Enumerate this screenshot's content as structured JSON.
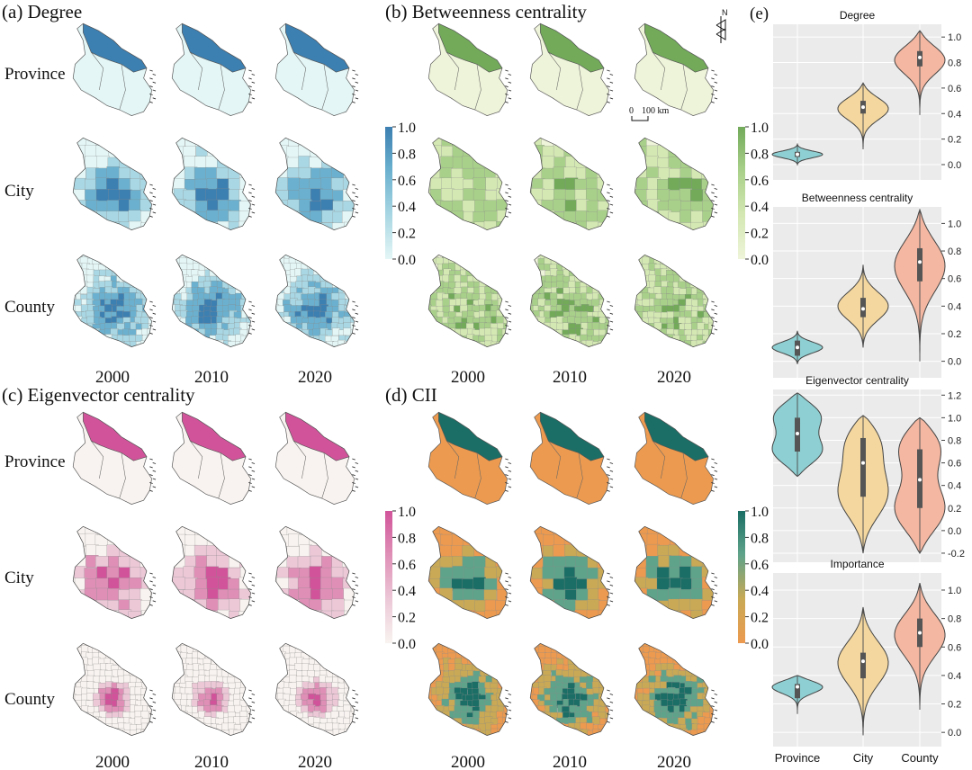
{
  "panels": [
    {
      "label": "(a) Degree",
      "palette": [
        "#e4f6f6",
        "#a9d7e3",
        "#6bb1cf",
        "#3c7fb1"
      ],
      "colorbar": {
        "ticks": [
          "0.0",
          "0.2",
          "0.4",
          "0.6",
          "0.8",
          "1.0"
        ]
      }
    },
    {
      "label": "(b) Betweenness centrality",
      "palette": [
        "#eef4d9",
        "#d4e8b3",
        "#a9d08a",
        "#72aa5a"
      ],
      "colorbar": {
        "ticks": [
          "0.0",
          "0.2",
          "0.4",
          "0.6",
          "0.8",
          "1.0"
        ]
      }
    },
    {
      "label": "(c) Eigenvector centrality",
      "palette": [
        "#f8f3f0",
        "#ecc8d7",
        "#df8fb6",
        "#d1549a"
      ],
      "colorbar": {
        "ticks": [
          "0.0",
          "0.2",
          "0.4",
          "0.6",
          "0.8",
          "1.0"
        ]
      }
    },
    {
      "label": "(d) CII",
      "palette": [
        "#ec9a4f",
        "#c9a955",
        "#5fa38a",
        "#1a6e65"
      ],
      "colorbar": {
        "ticks": [
          "0.0",
          "0.2",
          "0.4",
          "0.6",
          "0.8",
          "1.0"
        ]
      }
    }
  ],
  "row_labels": [
    "Province",
    "City",
    "County"
  ],
  "years": [
    "2000",
    "2010",
    "2020"
  ],
  "scale_bar": {
    "start": "0",
    "end": "100 km"
  },
  "north_arrow": "N",
  "panel_e_label": "(e)",
  "chart_data": {
    "type": "violin",
    "categories": [
      "Province",
      "City",
      "County"
    ],
    "category_colors": [
      "#8dcfd2",
      "#f4d79e",
      "#f4b7a1"
    ],
    "subplots": [
      {
        "title": "Degree",
        "yticks": [
          "0.0",
          "0.2",
          "0.4",
          "0.6",
          "0.8",
          "1.0"
        ],
        "ylim": [
          -0.12,
          1.1
        ],
        "violins": [
          {
            "min": 0.0,
            "max": 0.16,
            "median": 0.08,
            "q1": 0.06,
            "q3": 0.1,
            "modes": [
              0.08
            ]
          },
          {
            "min": 0.12,
            "max": 0.64,
            "median": 0.45,
            "q1": 0.4,
            "q3": 0.5,
            "modes": [
              0.45
            ]
          },
          {
            "min": 0.39,
            "max": 1.05,
            "median": 0.84,
            "q1": 0.77,
            "q3": 0.89,
            "modes": [
              0.84
            ]
          }
        ]
      },
      {
        "title": "Betweenness centrality",
        "yticks": [
          "0.0",
          "0.2",
          "0.4",
          "0.6",
          "0.8",
          "1.0"
        ],
        "ylim": [
          -0.12,
          1.12
        ],
        "violins": [
          {
            "min": -0.02,
            "max": 0.22,
            "median": 0.1,
            "q1": 0.04,
            "q3": 0.15,
            "modes": [
              0.1
            ]
          },
          {
            "min": 0.1,
            "max": 0.7,
            "median": 0.38,
            "q1": 0.32,
            "q3": 0.46,
            "modes": [
              0.4
            ]
          },
          {
            "min": 0.0,
            "max": 1.1,
            "median": 0.72,
            "q1": 0.58,
            "q3": 0.82,
            "modes": [
              0.72
            ]
          }
        ]
      },
      {
        "title": "Eigenvector centrality",
        "yticks": [
          "-0.2",
          "0.0",
          "0.2",
          "0.4",
          "0.6",
          "0.8",
          "1.0",
          "1.2"
        ],
        "ylim": [
          -0.28,
          1.25
        ],
        "violins": [
          {
            "min": 0.48,
            "max": 1.22,
            "median": 0.86,
            "q1": 0.7,
            "q3": 1.0,
            "modes": [
              1.05,
              0.68
            ]
          },
          {
            "min": -0.2,
            "max": 1.02,
            "median": 0.6,
            "q1": 0.3,
            "q3": 0.82,
            "modes": [
              0.85,
              0.3
            ]
          },
          {
            "min": -0.2,
            "max": 1.0,
            "median": 0.45,
            "q1": 0.2,
            "q3": 0.72,
            "modes": [
              0.8,
              0.15
            ]
          }
        ]
      },
      {
        "title": "Importance",
        "yticks": [
          "0.0",
          "0.2",
          "0.4",
          "0.6",
          "0.8",
          "1.0"
        ],
        "ylim": [
          -0.1,
          1.12
        ],
        "violins": [
          {
            "min": 0.13,
            "max": 0.4,
            "median": 0.32,
            "q1": 0.24,
            "q3": 0.34,
            "modes": [
              0.33
            ]
          },
          {
            "min": -0.02,
            "max": 0.88,
            "median": 0.5,
            "q1": 0.38,
            "q3": 0.56,
            "modes": [
              0.5
            ]
          },
          {
            "min": 0.16,
            "max": 1.05,
            "median": 0.7,
            "q1": 0.6,
            "q3": 0.8,
            "modes": [
              0.7
            ]
          }
        ]
      }
    ]
  }
}
